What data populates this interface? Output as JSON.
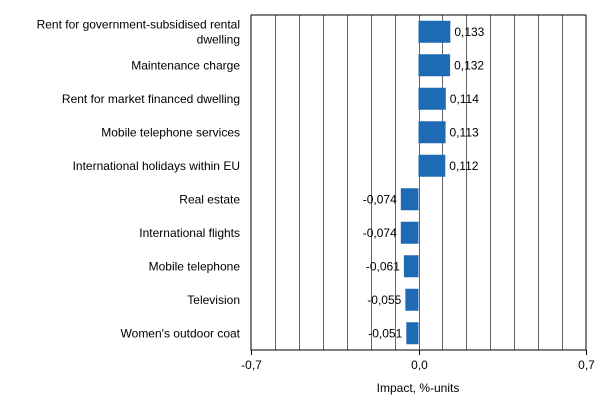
{
  "chart_data": {
    "type": "bar",
    "orientation": "horizontal",
    "categories": [
      [
        "Rent for government-subsidised rental",
        "dwelling"
      ],
      [
        "Maintenance charge"
      ],
      [
        "Rent for market financed dwelling"
      ],
      [
        "Mobile telephone services"
      ],
      [
        "International holidays within EU"
      ],
      [
        "Real estate"
      ],
      [
        "International flights"
      ],
      [
        "Mobile telephone"
      ],
      [
        "Television"
      ],
      [
        "Women's outdoor coat"
      ]
    ],
    "values": [
      0.133,
      0.132,
      0.114,
      0.113,
      0.112,
      -0.074,
      -0.074,
      -0.061,
      -0.055,
      -0.051
    ],
    "value_labels": [
      "0,133",
      "0,132",
      "0,114",
      "0,113",
      "0,112",
      "-0,074",
      "-0,074",
      "-0,061",
      "-0,055",
      "-0,051"
    ],
    "xlim": [
      -0.7,
      0.7
    ],
    "xticks": [
      -0.7,
      0.0,
      0.7
    ],
    "xtick_labels": [
      "-0,7",
      "0,0",
      "0,7"
    ],
    "xlabel": "Impact, %-units",
    "gridlines_step": 0.1,
    "grid": true,
    "bar_color": "#1f6ab4"
  }
}
